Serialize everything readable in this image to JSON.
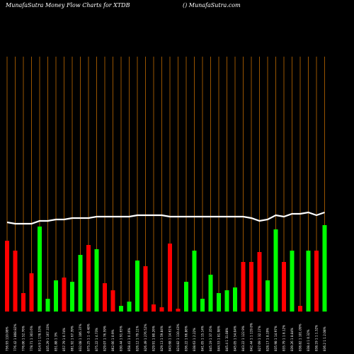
{
  "header": {
    "title_left": "MunafaSutra  Money Flow  Charts for XTDB",
    "title_right": "() MunafaSutra.com"
  },
  "colors": {
    "background": "#000000",
    "up": "#00ff00",
    "down": "#ff0000",
    "grid": "#ff8c00",
    "line": "#ffffff"
  },
  "chart_data": {
    "type": "bar",
    "title": "MunafaSutra  Money Flow  Charts for XTDB",
    "grid": true,
    "ylim": [
      0,
      100
    ],
    "bars": [
      {
        "label": "756.93 110.08%",
        "value": 50,
        "dir": "down"
      },
      {
        "label": "776.42 1 808.82%",
        "value": 43,
        "dir": "down"
      },
      {
        "label": "776.06 1 52.76%",
        "value": 13,
        "dir": "down"
      },
      {
        "label": "778.71 1 303.6%",
        "value": 27,
        "dir": "down"
      },
      {
        "label": "814.9 1 178.53%",
        "value": 60,
        "dir": "up"
      },
      {
        "label": "835.29 1 167.33%",
        "value": 9,
        "dir": "up"
      },
      {
        "label": "851.88 1 3%",
        "value": 22,
        "dir": "up"
      },
      {
        "label": "857.79 1 0.74%",
        "value": 24,
        "dir": "down"
      },
      {
        "label": "861.92 1 67.39%",
        "value": 21,
        "dir": "up"
      },
      {
        "label": "832.08 1 106.37%",
        "value": 40,
        "dir": "up"
      },
      {
        "label": "875.25 1 1 -0.48%",
        "value": 47,
        "dir": "down"
      },
      {
        "label": "875.22 1 4.73%",
        "value": 44,
        "dir": "up"
      },
      {
        "label": "829.07 1 76.59%",
        "value": 20,
        "dir": "down"
      },
      {
        "label": "862.66 1 0.9%",
        "value": 15,
        "dir": "down"
      },
      {
        "label": "830.44 1 91.65%",
        "value": 4,
        "dir": "up"
      },
      {
        "label": "858.41 1 0.16%",
        "value": 7,
        "dir": "up"
      },
      {
        "label": "826.12 1 79.11%",
        "value": 36,
        "dir": "up"
      },
      {
        "label": "826.49 1 276.52%",
        "value": 32,
        "dir": "down"
      },
      {
        "label": "829.91 1 80.26%",
        "value": 5,
        "dir": "down"
      },
      {
        "label": "829.13 1 59.84%",
        "value": 3,
        "dir": "down"
      },
      {
        "label": "843.68 1 14.61%",
        "value": 48,
        "dir": "down"
      },
      {
        "label": "824.82 1 110.43%",
        "value": 2,
        "dir": "down"
      },
      {
        "label": "836.22 1 66.86%",
        "value": 21,
        "dir": "up"
      },
      {
        "label": "838.63 1 2.22%",
        "value": 43,
        "dir": "up"
      },
      {
        "label": "841.05 1 15.14%",
        "value": 9,
        "dir": "up"
      },
      {
        "label": "845.19 1 37.35%",
        "value": 26,
        "dir": "up"
      },
      {
        "label": "844.53 1 81.98%",
        "value": 13,
        "dir": "up"
      },
      {
        "label": "845.4 1 31.08%",
        "value": 15,
        "dir": "up"
      },
      {
        "label": "845.05 1 54.04%",
        "value": 17,
        "dir": "up"
      },
      {
        "label": "843.22 1 122.9%",
        "value": 35,
        "dir": "down"
      },
      {
        "label": "842.44 1 1 119.8%",
        "value": 35,
        "dir": "down"
      },
      {
        "label": "827.69 1 32.17%",
        "value": 42,
        "dir": "down"
      },
      {
        "label": "828.17 1 8.19%",
        "value": 22,
        "dir": "up"
      },
      {
        "label": "835.98 1 14.97%",
        "value": 58,
        "dir": "up"
      },
      {
        "label": "835.79 1 1 8.12%",
        "value": 35,
        "dir": "down"
      },
      {
        "label": "839.26 1 8.84%",
        "value": 43,
        "dir": "up"
      },
      {
        "label": "838.82 1 101.09%",
        "value": 4,
        "dir": "down"
      },
      {
        "label": "838.4 1 0.32%",
        "value": 43,
        "dir": "up"
      },
      {
        "label": "838.19 1 1 1.32%",
        "value": 43,
        "dir": "down"
      },
      {
        "label": "836.2 1 1 2.08%",
        "value": 61,
        "dir": "up"
      }
    ],
    "line": [
      63,
      62,
      62,
      62,
      64,
      64,
      65,
      65,
      66,
      66,
      66,
      67,
      67,
      67,
      67,
      67,
      68,
      68,
      68,
      68,
      67,
      67,
      67,
      67,
      67,
      67,
      67,
      67,
      67,
      67,
      66,
      64,
      65,
      68,
      67,
      69,
      69,
      70,
      68,
      70
    ]
  }
}
